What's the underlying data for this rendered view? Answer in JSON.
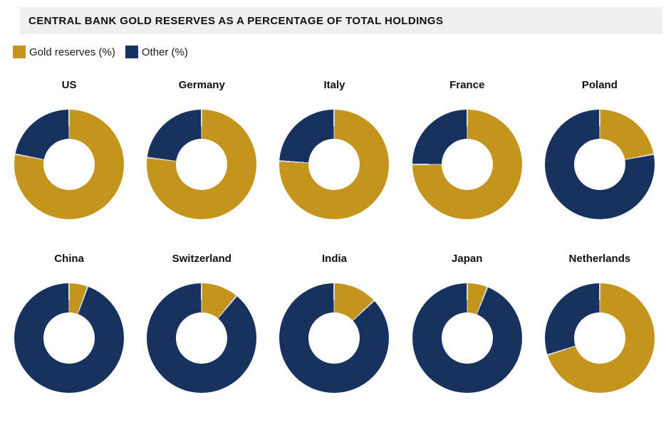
{
  "header": {
    "title": "CENTRAL BANK GOLD RESERVES AS A PERCENTAGE OF TOTAL HOLDINGS"
  },
  "legend": {
    "items": [
      {
        "label": "Gold reserves (%)",
        "color": "#C5941D"
      },
      {
        "label": "Other (%)",
        "color": "#17325F"
      }
    ]
  },
  "chart_data": {
    "type": "pie",
    "subtype": "donut_small_multiples",
    "title": "CENTRAL BANK GOLD RESERVES AS A PERCENTAGE OF TOTAL HOLDINGS",
    "series_labels": [
      "Gold reserves (%)",
      "Other (%)"
    ],
    "colors": {
      "gold_reserves": "#C5941D",
      "other": "#17325F",
      "slice_separator": "#d8dbe0"
    },
    "layout": {
      "rows": 2,
      "cols": 5,
      "legend_position": "top-left",
      "donut_hole_ratio": 0.47,
      "start_angle_deg": 0,
      "direction": "clockwise"
    },
    "countries": [
      {
        "name": "US",
        "gold_reserves_pct": 78,
        "other_pct": 22
      },
      {
        "name": "Germany",
        "gold_reserves_pct": 77,
        "other_pct": 23
      },
      {
        "name": "Italy",
        "gold_reserves_pct": 76,
        "other_pct": 24
      },
      {
        "name": "France",
        "gold_reserves_pct": 75,
        "other_pct": 25
      },
      {
        "name": "Poland",
        "gold_reserves_pct": 22,
        "other_pct": 78
      },
      {
        "name": "China",
        "gold_reserves_pct": 5.5,
        "other_pct": 94.5
      },
      {
        "name": "Switzerland",
        "gold_reserves_pct": 11,
        "other_pct": 89
      },
      {
        "name": "India",
        "gold_reserves_pct": 13,
        "other_pct": 87
      },
      {
        "name": "Japan",
        "gold_reserves_pct": 6,
        "other_pct": 94
      },
      {
        "name": "Netherlands",
        "gold_reserves_pct": 70,
        "other_pct": 30
      }
    ]
  }
}
